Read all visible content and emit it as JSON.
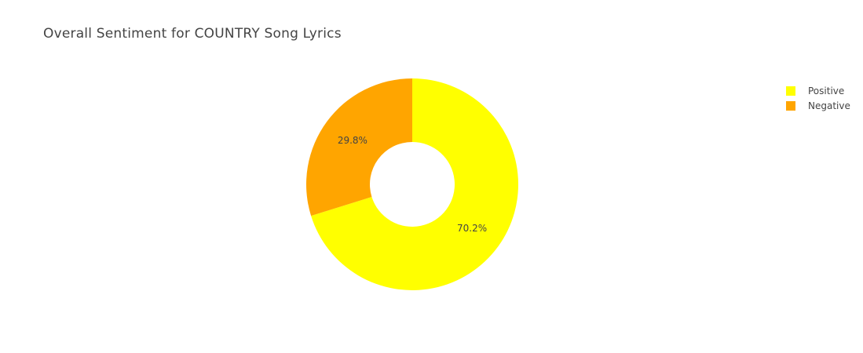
{
  "chart_data": {
    "type": "pie",
    "hole": 0.4,
    "title": "Overall Sentiment for COUNTRY Song Lyrics",
    "slices": [
      {
        "label": "Positive",
        "value": 70.2,
        "text": "70.2%",
        "color": "#FFFF00"
      },
      {
        "label": "Negative",
        "value": 29.8,
        "text": "29.8%",
        "color": "#FFA500"
      }
    ],
    "legend_position": "top-right",
    "direction": "clockwise",
    "start_angle": "12 o'clock"
  }
}
